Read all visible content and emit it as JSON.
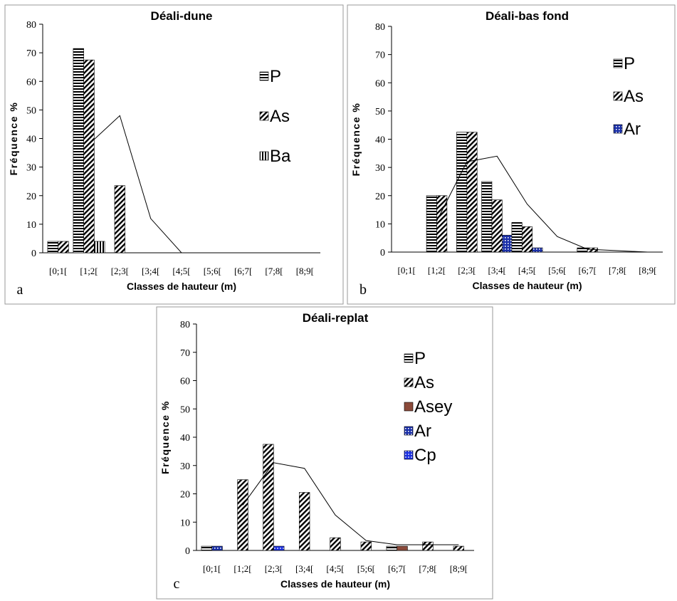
{
  "chart_data": [
    {
      "type": "bar",
      "panel": "a",
      "title": "Déali-dune",
      "xlabel": "Classes de hauteur (m)",
      "ylabel": "Fréquence %",
      "ylim": [
        0,
        80
      ],
      "yticks": [
        0,
        10,
        20,
        30,
        40,
        50,
        60,
        70,
        80
      ],
      "categories": [
        "[0;1[",
        "[1;2[",
        "[2;3[",
        "[3;4[",
        "[4;5[",
        "[5;6[",
        "[6;7[",
        "[7;8[",
        "[8;9["
      ],
      "series": [
        {
          "name": "P",
          "pattern": "hstripe",
          "values": [
            4,
            71.5,
            0,
            0,
            0,
            0,
            0,
            0,
            0
          ]
        },
        {
          "name": "As",
          "pattern": "diag",
          "values": [
            4,
            67.5,
            23.5,
            0,
            0,
            0,
            0,
            0,
            0
          ]
        },
        {
          "name": "Ba",
          "pattern": "vstripe",
          "values": [
            0,
            4,
            0,
            0,
            0,
            0,
            0,
            0,
            0
          ]
        }
      ],
      "line": [
        null,
        38,
        48,
        12,
        0,
        0,
        0,
        0,
        0
      ],
      "legend": "right"
    },
    {
      "type": "bar",
      "panel": "b",
      "title": "Déali-bas fond",
      "xlabel": "Classes de hauteur (m)",
      "ylabel": "Fréquence %",
      "ylim": [
        0,
        80
      ],
      "yticks": [
        0,
        10,
        20,
        30,
        40,
        50,
        60,
        70,
        80
      ],
      "categories": [
        "[0;1[",
        "[1;2[",
        "[2;3[",
        "[3;4[",
        "[4;5[",
        "[5;6[",
        "[6;7[",
        "[7;8[",
        "[8;9["
      ],
      "series": [
        {
          "name": "P",
          "pattern": "hstripe",
          "values": [
            0,
            20,
            42.5,
            25,
            10.5,
            0,
            1.5,
            0,
            0
          ]
        },
        {
          "name": "As",
          "pattern": "diag",
          "values": [
            0,
            20,
            42.5,
            18.5,
            9,
            0,
            1.5,
            0,
            0
          ]
        },
        {
          "name": "Ar",
          "pattern": "bluegrid",
          "values": [
            0,
            0,
            0,
            6,
            1.5,
            0,
            0,
            0,
            0
          ]
        }
      ],
      "line": [
        null,
        11,
        32,
        34,
        17,
        5.5,
        1,
        0.5,
        0
      ],
      "legend": "right"
    },
    {
      "type": "bar",
      "panel": "c",
      "title": "Déali-replat",
      "xlabel": "Classes de hauteur (m)",
      "ylabel": "Fréquence %",
      "ylim": [
        0,
        80
      ],
      "yticks": [
        0,
        10,
        20,
        30,
        40,
        50,
        60,
        70,
        80
      ],
      "categories": [
        "[0;1[",
        "[1;2[",
        "[2;3[",
        "[3;4[",
        "[4;5[",
        "[5;6[",
        "[6;7[",
        "[7;8[",
        "[8;9["
      ],
      "series": [
        {
          "name": "P",
          "pattern": "hstripe",
          "values": [
            1.5,
            0,
            0,
            0,
            0,
            0,
            1.5,
            0,
            0
          ]
        },
        {
          "name": "As",
          "pattern": "diag",
          "values": [
            0,
            25,
            37.5,
            20.5,
            4.5,
            3,
            0,
            3,
            1.5
          ]
        },
        {
          "name": "Asey",
          "pattern": "brown",
          "values": [
            0,
            0,
            0,
            0,
            0,
            0,
            1.5,
            0,
            0
          ]
        },
        {
          "name": "Ar",
          "pattern": "bluegrid",
          "values": [
            1.5,
            0,
            0,
            0,
            0,
            0,
            0,
            0,
            0
          ]
        },
        {
          "name": "Cp",
          "pattern": "bluedot",
          "values": [
            0,
            0,
            1.5,
            0,
            0,
            0,
            0,
            0,
            0
          ]
        }
      ],
      "line": [
        null,
        16,
        31,
        29,
        12.5,
        3.5,
        2,
        2,
        2
      ],
      "legend": "right"
    }
  ],
  "colors": {
    "frame": "#999999",
    "axis": "#000000",
    "bar_fill": "#ffffff",
    "asey": "#8b4a3a",
    "ar": "#1a2fa8",
    "cp": "#1a2fe0"
  }
}
